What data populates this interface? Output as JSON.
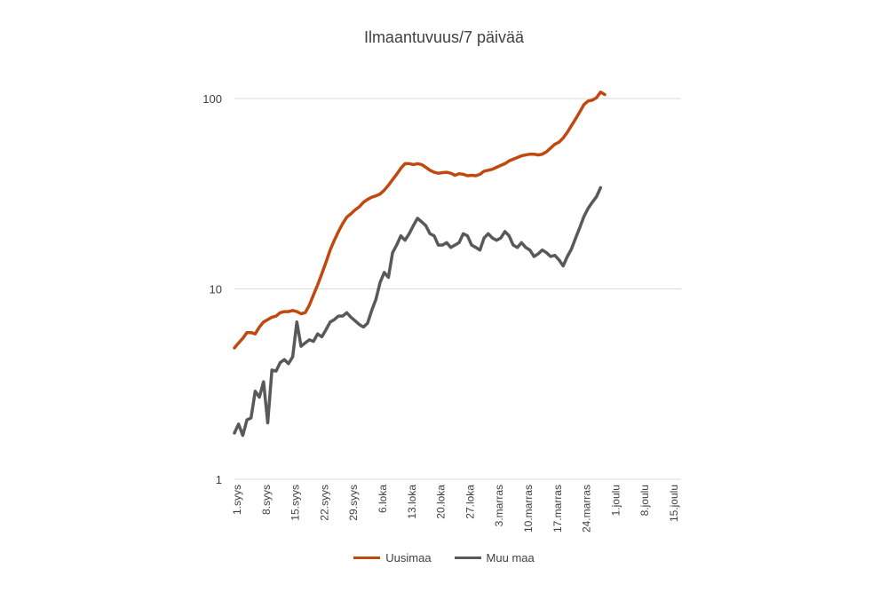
{
  "chart_data": {
    "type": "line",
    "title": "Ilmaantuvuus/7 päivää",
    "xlabel": "",
    "ylabel": "",
    "y_scale": "log",
    "ylim": [
      1,
      100
    ],
    "y_ticks": [
      {
        "value": 1,
        "label": "1"
      },
      {
        "value": 10,
        "label": "10"
      },
      {
        "value": 100,
        "label": "100"
      }
    ],
    "x_ticks": [
      "1.syys",
      "8.syys",
      "15.syys",
      "22.syys",
      "29.syys",
      "6.loka",
      "13.loka",
      "20.loka",
      "27.loka",
      "3.marras",
      "10.marras",
      "17.marras",
      "24.marras",
      "1.joulu",
      "8.joulu",
      "15.joulu"
    ],
    "grid": "horizontal",
    "legend_position": "bottom",
    "series": [
      {
        "name": "Uusimaa",
        "color": "#C0490F",
        "values": [
          4.9,
          5.2,
          5.5,
          5.9,
          5.9,
          5.8,
          6.3,
          6.7,
          6.9,
          7.1,
          7.2,
          7.5,
          7.6,
          7.6,
          7.7,
          7.6,
          7.4,
          7.5,
          8.2,
          9.3,
          10.5,
          12.0,
          13.8,
          16.0,
          18.0,
          20.0,
          22.0,
          23.8,
          24.8,
          26.0,
          27.0,
          28.5,
          29.5,
          30.3,
          30.8,
          31.5,
          33.0,
          35.0,
          37.5,
          40.0,
          43.0,
          45.5,
          45.5,
          45.0,
          45.5,
          45.0,
          43.5,
          42.0,
          41.0,
          40.5,
          40.8,
          41.0,
          40.5,
          39.5,
          40.3,
          40.0,
          39.3,
          39.5,
          39.3,
          40.0,
          41.5,
          42.0,
          42.5,
          43.5,
          44.5,
          45.5,
          47.0,
          48.0,
          49.0,
          50.0,
          50.5,
          51.0,
          51.0,
          50.5,
          51.0,
          52.5,
          55.0,
          57.5,
          59.0,
          62.0,
          66.5,
          72.0,
          78.0,
          85.0,
          93.0,
          97.0,
          98.0,
          101.0,
          108.0,
          105.0
        ]
      },
      {
        "name": "Muu maa",
        "color": "#595959",
        "values": [
          1.75,
          1.95,
          1.7,
          2.05,
          2.1,
          2.9,
          2.7,
          3.25,
          1.98,
          3.75,
          3.7,
          4.1,
          4.25,
          4.05,
          4.4,
          6.7,
          5.0,
          5.2,
          5.4,
          5.3,
          5.8,
          5.6,
          6.1,
          6.7,
          6.9,
          7.2,
          7.2,
          7.5,
          7.1,
          6.8,
          6.5,
          6.3,
          6.6,
          7.7,
          8.8,
          10.8,
          12.2,
          11.5,
          15.5,
          17.0,
          19.0,
          18.0,
          19.5,
          21.5,
          23.5,
          22.5,
          21.5,
          19.5,
          19.0,
          17.0,
          17.0,
          17.5,
          16.5,
          17.0,
          17.5,
          19.5,
          19.0,
          17.0,
          16.5,
          16.0,
          18.5,
          19.5,
          18.5,
          18.0,
          18.5,
          20.0,
          19.0,
          17.0,
          16.5,
          17.5,
          16.5,
          16.0,
          14.8,
          15.3,
          16.0,
          15.5,
          14.8,
          15.0,
          14.2,
          13.2,
          14.8,
          16.2,
          18.5,
          21.0,
          24.0,
          26.5,
          28.5,
          30.5,
          34.0
        ]
      }
    ]
  }
}
